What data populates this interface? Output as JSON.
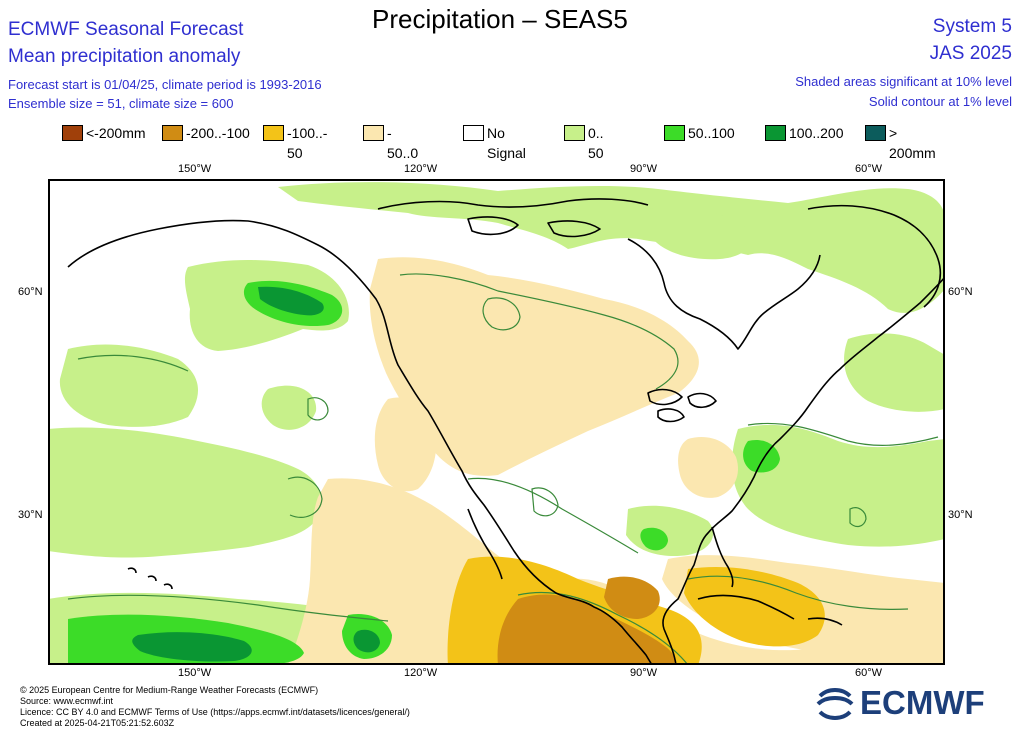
{
  "header": {
    "main_title": "Precipitation – SEAS5",
    "left_title1": "ECMWF Seasonal Forecast",
    "left_title2": "Mean precipitation anomaly",
    "meta_line1": "Forecast start is 01/04/25, climate period is 1993-2016",
    "meta_line2": "Ensemble size = 51, climate size = 600",
    "right_title1": "System 5",
    "right_title2": "JAS 2025",
    "sig_line1": "Shaded areas significant at 10% level",
    "sig_line2": "Solid contour at 1% level"
  },
  "legend": [
    {
      "label": "<-200mm",
      "color": "#a0400a"
    },
    {
      "label": "-200..-100",
      "color": "#d08c14"
    },
    {
      "label": "-100..- 50",
      "color": "#f3c318"
    },
    {
      "label": "- 50..0",
      "color": "#fbe7b0"
    },
    {
      "label": "No Signal",
      "color": "#ffffff"
    },
    {
      "label": "0.. 50",
      "color": "#c7f08a"
    },
    {
      "label": "50..100",
      "color": "#3cdc28"
    },
    {
      "label": "100..200",
      "color": "#0a9633"
    },
    {
      "label": "> 200mm",
      "color": "#0c5c5c"
    }
  ],
  "map": {
    "lon_ticks_top": [
      "150°W",
      "120°W",
      "90°W",
      "60°W"
    ],
    "lon_ticks_bottom": [
      "150°W",
      "120°W",
      "90°W",
      "60°W"
    ],
    "lat_ticks_left": [
      "60°N",
      "30°N"
    ],
    "lat_ticks_right": [
      "60°N",
      "30°N"
    ],
    "colors": {
      "dry_light": "#fbe7b0",
      "dry_mid": "#f3c318",
      "dry_strong": "#d08c14",
      "wet_light": "#c7f08a",
      "wet_mid": "#3cdc28",
      "wet_strong": "#0a9633",
      "contour": "#3a8a3a",
      "coast": "#000000"
    }
  },
  "footer": {
    "line1": "© 2025 European Centre for Medium-Range Weather Forecasts (ECMWF)",
    "line2": "Source: www.ecmwf.int",
    "line3": "Licence: CC BY 4.0 and ECMWF Terms of Use (https://apps.ecmwf.int/datasets/licences/general/)",
    "line4": "Created at 2025-04-21T05:21:52.603Z"
  },
  "logo": {
    "text": "ECMWF",
    "color": "#1d3f7a"
  }
}
